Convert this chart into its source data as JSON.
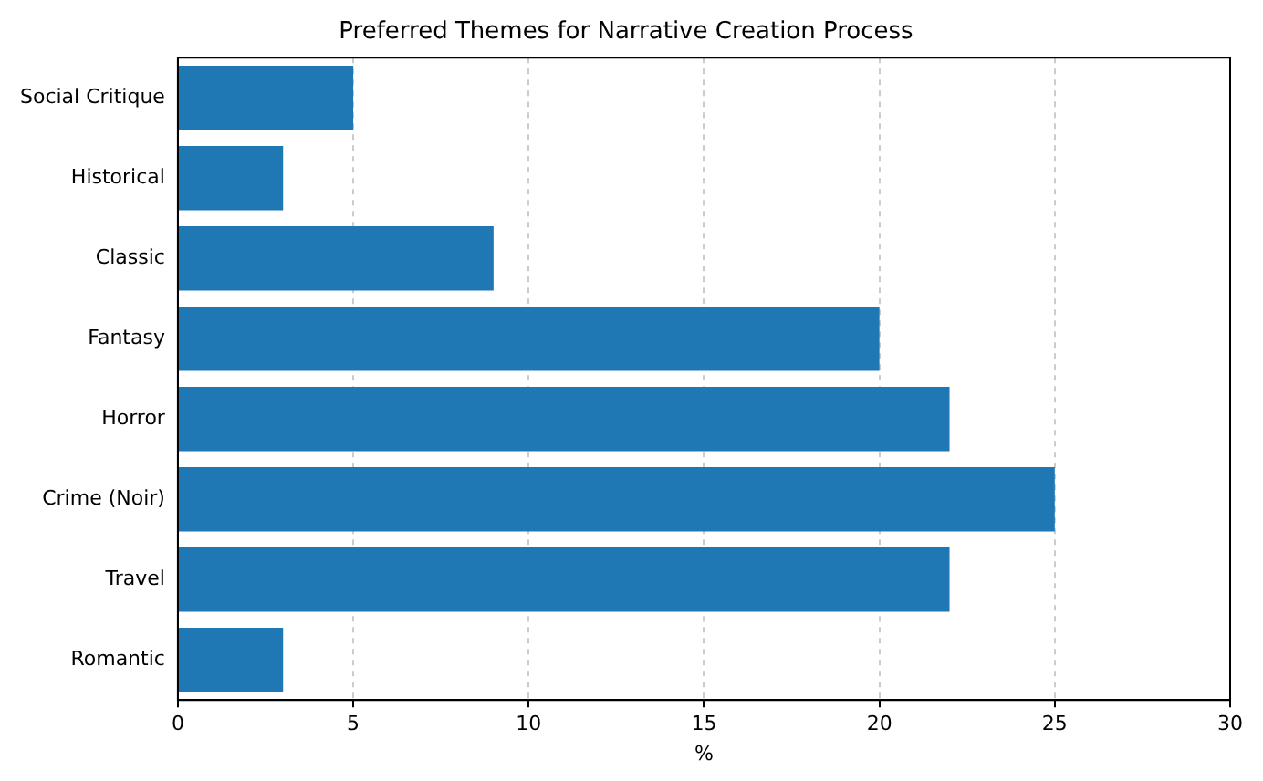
{
  "chart_data": {
    "type": "bar",
    "orientation": "horizontal",
    "title": "Preferred Themes for Narrative Creation Process",
    "xlabel": "%",
    "categories": [
      "Social Critique",
      "Historical",
      "Classic",
      "Fantasy",
      "Horror",
      "Crime (Noir)",
      "Travel",
      "Romantic"
    ],
    "values": [
      5,
      3,
      9,
      20,
      22,
      25,
      22,
      3
    ],
    "color": "#1f77b4",
    "xlim": [
      0,
      30
    ],
    "xticks": [
      0,
      5,
      10,
      15,
      20,
      25,
      30
    ],
    "grid": "x",
    "legend": false
  }
}
